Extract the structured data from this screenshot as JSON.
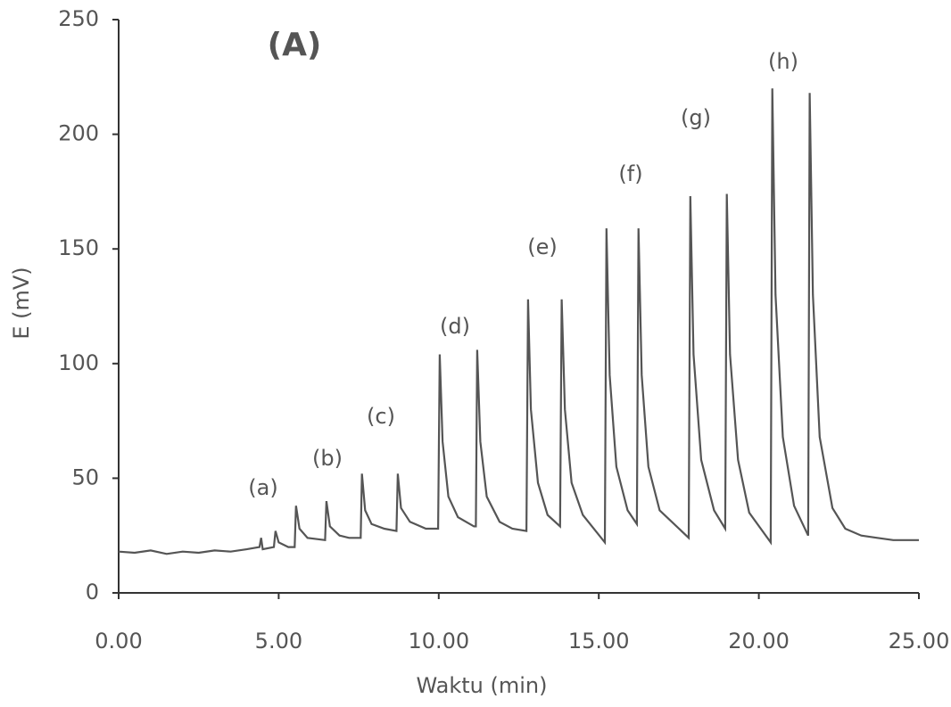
{
  "chart_data": {
    "type": "line",
    "x_label": "Waktu (min)",
    "y_label": "E (mV)",
    "annotations": [
      "(A)",
      "(a)",
      "(b)",
      "(c)",
      "(d)",
      "(e)",
      "(f)",
      "(g)",
      "(h)"
    ],
    "x": [
      0,
      0.5,
      1,
      1.5,
      2,
      2.5,
      3,
      3.5,
      4,
      4.4,
      4.45,
      4.5,
      4.85,
      4.9,
      5.0,
      5.3,
      5.5,
      5.54,
      5.65,
      5.9,
      6.45,
      6.49,
      6.6,
      6.9,
      7.2,
      7.56,
      7.6,
      7.7,
      7.9,
      8.3,
      8.68,
      8.72,
      8.82,
      9.1,
      9.6,
      9.98,
      10.03,
      10.12,
      10.3,
      10.6,
      11.1,
      11.16,
      11.2,
      11.3,
      11.5,
      11.9,
      12.3,
      12.74,
      12.79,
      12.88,
      13.1,
      13.4,
      13.79,
      13.84,
      13.94,
      14.15,
      14.5,
      15.19,
      15.24,
      15.34,
      15.55,
      15.9,
      16.19,
      16.24,
      16.34,
      16.55,
      16.9,
      17.81,
      17.86,
      17.96,
      18.2,
      18.6,
      18.95,
      19.0,
      19.1,
      19.35,
      19.7,
      20.37,
      20.42,
      20.52,
      20.75,
      21.1,
      21.54,
      21.59,
      21.69,
      21.9,
      22.3,
      22.7,
      23.2,
      23.7,
      24.2,
      24.6,
      25.0
    ],
    "series": [
      {
        "color": "#555555",
        "values": [
          18,
          17.5,
          18.5,
          17,
          18,
          17.5,
          18.5,
          18,
          19,
          20,
          24,
          19,
          20,
          27,
          22,
          20,
          20,
          38,
          28,
          24,
          23,
          40,
          29,
          25,
          24,
          24,
          52,
          36,
          30,
          28,
          27,
          52,
          37,
          31,
          28,
          28,
          104,
          66,
          42,
          33,
          29,
          29,
          106,
          66,
          42,
          31,
          28,
          27,
          128,
          80,
          48,
          34,
          29,
          128,
          80,
          48,
          34,
          22,
          159,
          95,
          55,
          36,
          30,
          159,
          95,
          55,
          36,
          24,
          173,
          104,
          58,
          36,
          28,
          174,
          104,
          58,
          35,
          22,
          220,
          130,
          68,
          38,
          25,
          218,
          130,
          68,
          37,
          28,
          25,
          24,
          23,
          23,
          23
        ]
      }
    ],
    "xlim": [
      0,
      25
    ],
    "xticks": [
      {
        "value": 0,
        "label": "0.00"
      },
      {
        "value": 5,
        "label": "5.00"
      },
      {
        "value": 10,
        "label": "10.00"
      },
      {
        "value": 15,
        "label": "15.00"
      },
      {
        "value": 20,
        "label": "20.00"
      },
      {
        "value": 25,
        "label": "25.00"
      }
    ],
    "ylim": [
      0,
      250
    ],
    "yticks": [
      0,
      50,
      100,
      150,
      200,
      250
    ],
    "grid": false
  }
}
